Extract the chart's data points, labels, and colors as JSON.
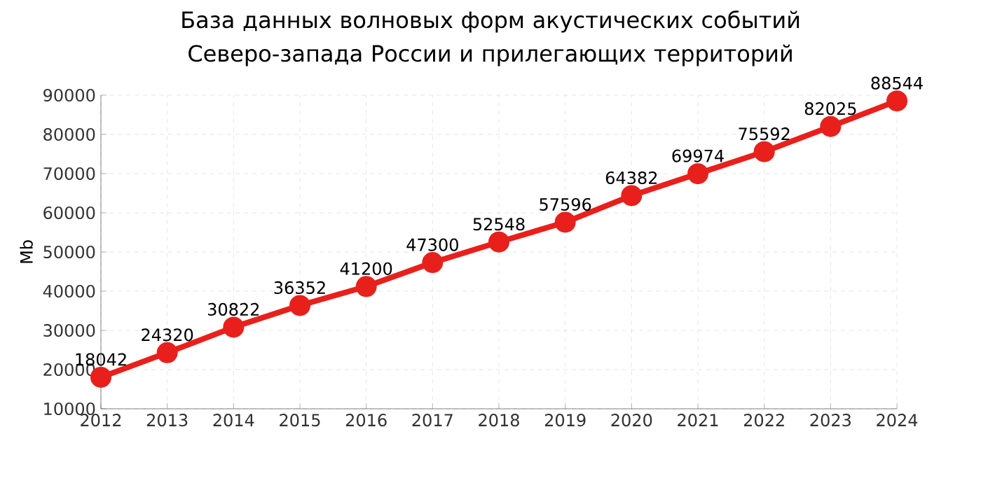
{
  "chart_data": {
    "type": "line",
    "title": "База данных волновых форм акустических событий\nСеверо-запада России и прилегающих территорий",
    "ylabel": "Mb",
    "x": [
      2012,
      2013,
      2014,
      2015,
      2016,
      2017,
      2018,
      2019,
      2020,
      2021,
      2022,
      2023,
      2024
    ],
    "series": [
      {
        "color": "#e8201c",
        "values": [
          18042,
          24320,
          30822,
          36352,
          41200,
          47300,
          52548,
          57596,
          64382,
          69974,
          75592,
          82025,
          88544
        ]
      }
    ],
    "xlim": [
      2012,
      2024
    ],
    "xticks": [
      2012,
      2013,
      2014,
      2015,
      2016,
      2017,
      2018,
      2019,
      2020,
      2021,
      2022,
      2023,
      2024
    ],
    "ylim": [
      10000,
      90000
    ],
    "yticks": [
      10000,
      20000,
      30000,
      40000,
      50000,
      60000,
      70000,
      80000,
      90000
    ],
    "grid": true,
    "marker": "circle",
    "line_style": "solid",
    "data_labels": true
  }
}
